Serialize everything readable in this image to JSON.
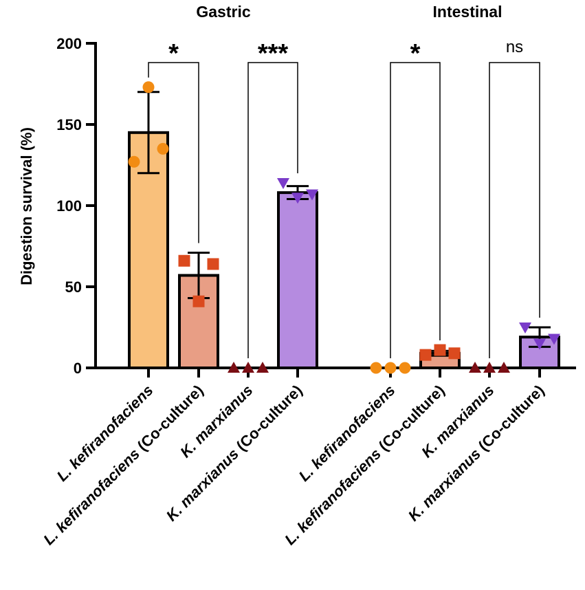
{
  "chart_data": {
    "type": "bar",
    "ylabel": "Digestion survival (%)",
    "ylim": [
      0,
      200
    ],
    "yticks": [
      0,
      50,
      100,
      150,
      200
    ],
    "groups": [
      {
        "title": "Gastric",
        "bars": [
          {
            "label_italic": "L. kefiranofaciens",
            "label_plain": "",
            "value": 145,
            "sd": 25,
            "points": [
              127,
              173,
              135
            ],
            "marker": "circle",
            "color": "#F9C07B",
            "marker_color": "#F28C13"
          },
          {
            "label_italic": "L. kefiranofaciens",
            "label_plain": " (Co-culture)",
            "value": 57,
            "sd": 14,
            "points": [
              66,
              41,
              64
            ],
            "marker": "square",
            "color": "#E89E85",
            "marker_color": "#DB4A1E"
          },
          {
            "label_italic": "K. marxianus",
            "label_plain": "",
            "value": 0,
            "sd": 0,
            "points": [
              0,
              0,
              0
            ],
            "marker": "triangle-up",
            "color": "#8B1A1A",
            "marker_color": "#7A0E14"
          },
          {
            "label_italic": "K. marxianus",
            "label_plain": " (Co-culture)",
            "value": 108,
            "sd": 4,
            "points": [
              114,
              105,
              107
            ],
            "marker": "triangle-down",
            "color": "#B58BE0",
            "marker_color": "#7A3CC9"
          }
        ],
        "comparisons": [
          {
            "pair": [
              0,
              1
            ],
            "label": "*"
          },
          {
            "pair": [
              2,
              3
            ],
            "label": "***"
          }
        ]
      },
      {
        "title": "Intestinal",
        "bars": [
          {
            "label_italic": "L. kefiranofaciens",
            "label_plain": "",
            "value": 0,
            "sd": 0,
            "points": [
              0,
              0,
              0
            ],
            "marker": "circle",
            "color": "#F9C07B",
            "marker_color": "#F28C13"
          },
          {
            "label_italic": "L. kefiranofaciens",
            "label_plain": " (Co-culture)",
            "value": 9,
            "sd": 1.5,
            "points": [
              8,
              11,
              9
            ],
            "marker": "square",
            "color": "#E89E85",
            "marker_color": "#DB4A1E"
          },
          {
            "label_italic": "K. marxianus",
            "label_plain": "",
            "value": 0,
            "sd": 0,
            "points": [
              0,
              0,
              0
            ],
            "marker": "triangle-up",
            "color": "#8B1A1A",
            "marker_color": "#7A0E14"
          },
          {
            "label_italic": "K. marxianus",
            "label_plain": " (Co-culture)",
            "value": 19,
            "sd": 6,
            "points": [
              25,
              15,
              18
            ],
            "marker": "triangle-down",
            "color": "#B58BE0",
            "marker_color": "#7A3CC9"
          }
        ],
        "comparisons": [
          {
            "pair": [
              0,
              1
            ],
            "label": "*"
          },
          {
            "pair": [
              2,
              3
            ],
            "label": "ns"
          }
        ]
      }
    ]
  }
}
